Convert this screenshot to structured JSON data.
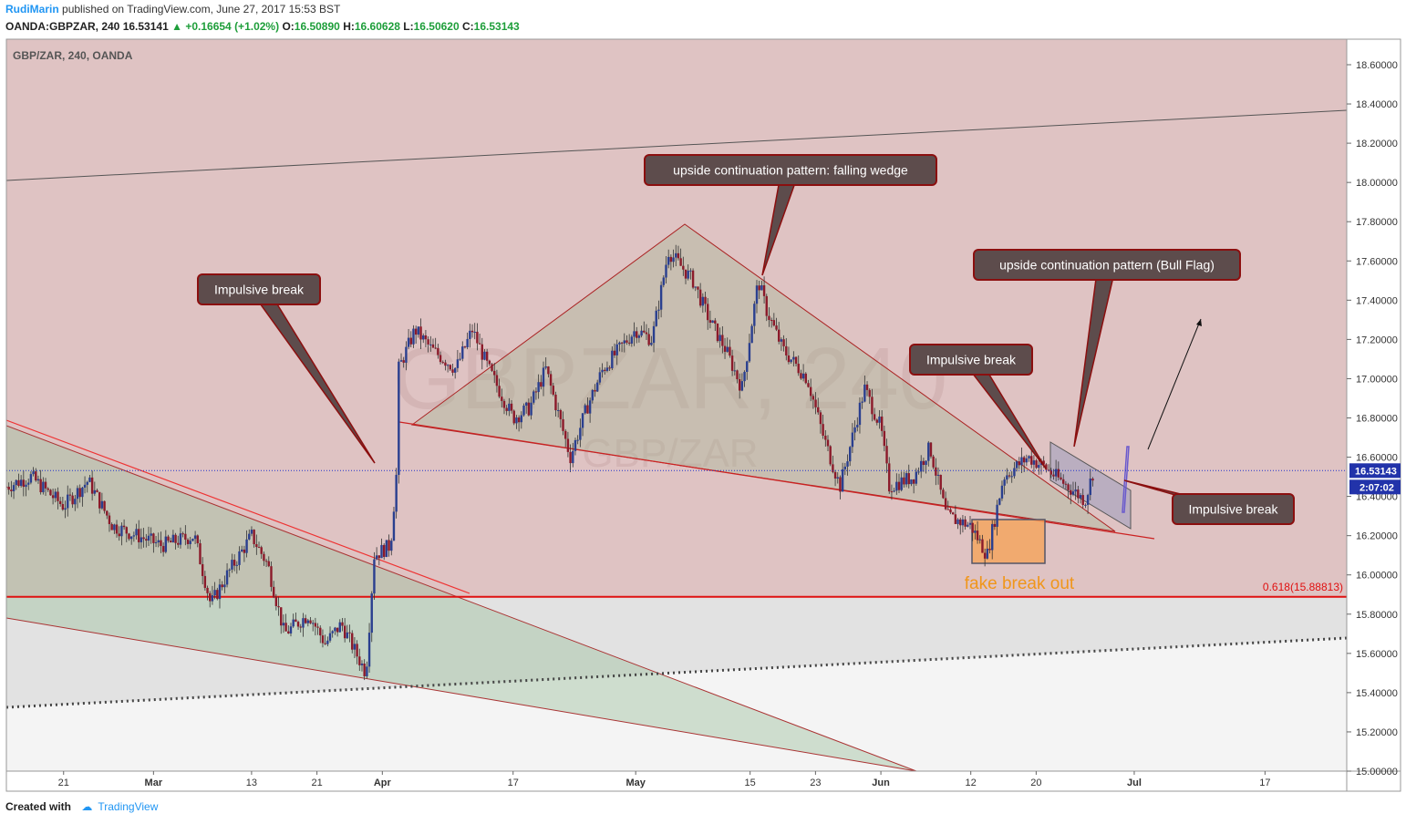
{
  "header": {
    "author": "RudiMarin",
    "published_text": "published on TradingView.com, June 27, 2017 15:53 BST",
    "symbol": "OANDA:GBPZAR, 240",
    "last": "16.53141",
    "change": "+0.16654 (+1.02%)",
    "o_label": "O:",
    "o_value": "16.50890",
    "h_label": "H:",
    "h_value": "16.60628",
    "l_label": "L:",
    "l_value": "16.50620",
    "c_label": "C:",
    "c_value": "16.53143"
  },
  "footer": {
    "created_with": "Created with",
    "brand": "TradingView"
  },
  "colors": {
    "up": "#1e9e3a",
    "accent": "#2196f3",
    "bg_upper": "#dfc3c3",
    "bg_lower": "#e2e2e2",
    "candle_up": "#2a3f8f",
    "candle_down": "#8b1a2a",
    "callout": "#5d4c4c",
    "callout_border": "#8b0f0f",
    "fib": "#e01010",
    "fake_text": "#f0961a"
  },
  "chart_data": {
    "type": "candlestick",
    "title": "GBP/ZAR, 240, OANDA",
    "watermark": "GBPZAR, 240",
    "watermark_sub": "GBP/ZAR",
    "ylim": [
      15.0,
      18.73
    ],
    "y_ticks": [
      "18.60000",
      "18.40000",
      "18.20000",
      "18.00000",
      "17.80000",
      "17.60000",
      "17.40000",
      "17.20000",
      "17.00000",
      "16.80000",
      "16.60000",
      "16.40000",
      "16.20000",
      "16.00000",
      "15.80000",
      "15.60000",
      "15.40000",
      "15.20000",
      "15.00000"
    ],
    "x_ticks": [
      "21",
      "Mar",
      "13",
      "21",
      "Apr",
      "17",
      "May",
      "15",
      "23",
      "Jun",
      "12",
      "20",
      "Jul",
      "17"
    ],
    "current_price": "16.53143",
    "current_price_value": 16.53143,
    "countdown": "2:07:02",
    "fib_label": "0.618(15.88813)",
    "fib_value": 15.88813,
    "path": [
      {
        "t": "Feb 14",
        "v": 16.45
      },
      {
        "t": "Feb 17",
        "v": 16.5
      },
      {
        "t": "Feb 21",
        "v": 16.35
      },
      {
        "t": "Feb 24",
        "v": 16.48
      },
      {
        "t": "Feb 27",
        "v": 16.25
      },
      {
        "t": "Mar 2",
        "v": 16.15
      },
      {
        "t": "Mar 6",
        "v": 16.2
      },
      {
        "t": "Mar 8",
        "v": 15.85
      },
      {
        "t": "Mar 10",
        "v": 16.0
      },
      {
        "t": "Mar 13",
        "v": 16.2
      },
      {
        "t": "Mar 15",
        "v": 16.05
      },
      {
        "t": "Mar 17",
        "v": 15.7
      },
      {
        "t": "Mar 20",
        "v": 15.8
      },
      {
        "t": "Mar 22",
        "v": 15.65
      },
      {
        "t": "Mar 24",
        "v": 15.75
      },
      {
        "t": "Mar 27",
        "v": 15.5
      },
      {
        "t": "Mar 28",
        "v": 16.1
      },
      {
        "t": "Mar 30",
        "v": 16.15
      },
      {
        "t": "Mar 31",
        "v": 16.65
      },
      {
        "t": "Apr 2",
        "v": 16.95
      },
      {
        "t": "Apr 5",
        "v": 17.25
      },
      {
        "t": "Apr 7",
        "v": 17.15
      },
      {
        "t": "Apr 10",
        "v": 17.05
      },
      {
        "t": "Apr 12",
        "v": 17.25
      },
      {
        "t": "Apr 14",
        "v": 17.05
      },
      {
        "t": "Apr 17",
        "v": 16.8
      },
      {
        "t": "Apr 19",
        "v": 16.85
      },
      {
        "t": "Apr 21",
        "v": 17.05
      },
      {
        "t": "Apr 24",
        "v": 16.6
      },
      {
        "t": "Apr 26",
        "v": 16.85
      },
      {
        "t": "Apr 28",
        "v": 17.05
      },
      {
        "t": "May 1",
        "v": 17.25
      },
      {
        "t": "May 3",
        "v": 17.2
      },
      {
        "t": "May 5",
        "v": 17.65
      },
      {
        "t": "May 8",
        "v": 17.5
      },
      {
        "t": "May 10",
        "v": 17.3
      },
      {
        "t": "May 12",
        "v": 17.15
      },
      {
        "t": "May 14",
        "v": 16.95
      },
      {
        "t": "May 16",
        "v": 17.5
      },
      {
        "t": "May 17",
        "v": 17.35
      },
      {
        "t": "May 19",
        "v": 17.15
      },
      {
        "t": "May 22",
        "v": 17.0
      },
      {
        "t": "May 24",
        "v": 16.7
      },
      {
        "t": "May 26",
        "v": 16.45
      },
      {
        "t": "May 29",
        "v": 16.95
      },
      {
        "t": "May 31",
        "v": 16.75
      },
      {
        "t": "Jun 2",
        "v": 16.45
      },
      {
        "t": "Jun 5",
        "v": 16.5
      },
      {
        "t": "Jun 7",
        "v": 16.65
      },
      {
        "t": "Jun 9",
        "v": 16.3
      },
      {
        "t": "Jun 12",
        "v": 16.25
      },
      {
        "t": "Jun 14",
        "v": 16.1
      },
      {
        "t": "Jun 16",
        "v": 16.5
      },
      {
        "t": "Jun 19",
        "v": 16.6
      },
      {
        "t": "Jun 21",
        "v": 16.55
      },
      {
        "t": "Jun 23",
        "v": 16.48
      },
      {
        "t": "Jun 26",
        "v": 16.38
      },
      {
        "t": "Jun 27",
        "v": 16.53
      }
    ],
    "annotations": [
      {
        "text": "Impulsive break"
      },
      {
        "text": "upside continuation pattern: falling wedge"
      },
      {
        "text": "upside continuation pattern (Bull Flag)"
      },
      {
        "text": "Impulsive break"
      },
      {
        "text": "Impulsive break"
      }
    ],
    "fake_breakout_label": "fake break out",
    "grid": false,
    "legend": "none"
  }
}
